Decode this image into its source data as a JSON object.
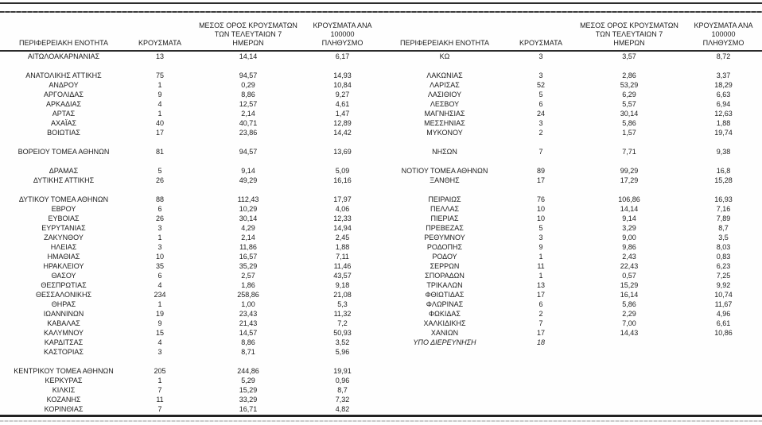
{
  "table": {
    "headers": {
      "region": "ΠΕΡΙΦΕΡΕΙΑΚΗ ΕΝΟΤΗΤΑ",
      "cases": "ΚΡΟΥΣΜΑΤΑ",
      "avg7": "ΜΕΣΟΣ ΟΡΟΣ ΚΡΟΥΣΜΑΤΩΝ\nΤΩΝ ΤΕΛΕΥΤΑΙΩΝ 7\nΗΜΕΡΩΝ",
      "per100k": "ΚΡΟΥΣΜΑΤΑ ΑΝΑ 100000\nΠΛΗΘΥΣΜΟ"
    },
    "left_rows": [
      {
        "region": "ΑΙΤΩΛΟΑΚΑΡΝΑΝΙΑΣ",
        "cases": "13",
        "avg7": "14,14",
        "per100k": "6,17"
      },
      {
        "blank": true
      },
      {
        "region": "ΑΝΑΤΟΛΙΚΗΣ ΑΤΤΙΚΗΣ",
        "cases": "75",
        "avg7": "94,57",
        "per100k": "14,93"
      },
      {
        "region": "ΑΝΔΡΟΥ",
        "cases": "1",
        "avg7": "0,29",
        "per100k": "10,84"
      },
      {
        "region": "ΑΡΓΟΛΙΔΑΣ",
        "cases": "9",
        "avg7": "8,86",
        "per100k": "9,27"
      },
      {
        "region": "ΑΡΚΑΔΙΑΣ",
        "cases": "4",
        "avg7": "12,57",
        "per100k": "4,61"
      },
      {
        "region": "ΑΡΤΑΣ",
        "cases": "1",
        "avg7": "2,14",
        "per100k": "1,47"
      },
      {
        "region": "ΑΧΑΪΑΣ",
        "cases": "40",
        "avg7": "40,71",
        "per100k": "12,89"
      },
      {
        "region": "ΒΟΙΩΤΙΑΣ",
        "cases": "17",
        "avg7": "23,86",
        "per100k": "14,42"
      },
      {
        "blank": true
      },
      {
        "region": "ΒΟΡΕΙΟΥ ΤΟΜΕΑ ΑΘΗΝΩΝ",
        "cases": "81",
        "avg7": "94,57",
        "per100k": "13,69"
      },
      {
        "blank": true
      },
      {
        "region": "ΔΡΑΜΑΣ",
        "cases": "5",
        "avg7": "9,14",
        "per100k": "5,09"
      },
      {
        "region": "ΔΥΤΙΚΗΣ ΑΤΤΙΚΗΣ",
        "cases": "26",
        "avg7": "49,29",
        "per100k": "16,16"
      },
      {
        "blank": true
      },
      {
        "region": "ΔΥΤΙΚΟΥ ΤΟΜΕΑ ΑΘΗΝΩΝ",
        "cases": "88",
        "avg7": "112,43",
        "per100k": "17,97"
      },
      {
        "region": "ΕΒΡΟΥ",
        "cases": "6",
        "avg7": "10,29",
        "per100k": "4,06"
      },
      {
        "region": "ΕΥΒΟΙΑΣ",
        "cases": "26",
        "avg7": "30,14",
        "per100k": "12,33"
      },
      {
        "region": "ΕΥΡΥΤΑΝΙΑΣ",
        "cases": "3",
        "avg7": "4,29",
        "per100k": "14,94"
      },
      {
        "region": "ΖΑΚΥΝΘΟΥ",
        "cases": "1",
        "avg7": "2,14",
        "per100k": "2,45"
      },
      {
        "region": "ΗΛΕΙΑΣ",
        "cases": "3",
        "avg7": "11,86",
        "per100k": "1,88"
      },
      {
        "region": "ΗΜΑΘΙΑΣ",
        "cases": "10",
        "avg7": "16,57",
        "per100k": "7,11"
      },
      {
        "region": "ΗΡΑΚΛΕΙΟΥ",
        "cases": "35",
        "avg7": "35,29",
        "per100k": "11,46"
      },
      {
        "region": "ΘΑΣΟΥ",
        "cases": "6",
        "avg7": "2,57",
        "per100k": "43,57"
      },
      {
        "region": "ΘΕΣΠΡΩΤΙΑΣ",
        "cases": "4",
        "avg7": "1,86",
        "per100k": "9,18"
      },
      {
        "region": "ΘΕΣΣΑΛΟΝΙΚΗΣ",
        "cases": "234",
        "avg7": "258,86",
        "per100k": "21,08"
      },
      {
        "region": "ΘΗΡΑΣ",
        "cases": "1",
        "avg7": "1,00",
        "per100k": "5,3"
      },
      {
        "region": "ΙΩΑΝΝΙΝΩΝ",
        "cases": "19",
        "avg7": "23,43",
        "per100k": "11,32"
      },
      {
        "region": "ΚΑΒΑΛΑΣ",
        "cases": "9",
        "avg7": "21,43",
        "per100k": "7,2"
      },
      {
        "region": "ΚΑΛΥΜΝΟΥ",
        "cases": "15",
        "avg7": "14,57",
        "per100k": "50,93"
      },
      {
        "region": "ΚΑΡΔΙΤΣΑΣ",
        "cases": "4",
        "avg7": "8,86",
        "per100k": "3,52"
      },
      {
        "region": "ΚΑΣΤΟΡΙΑΣ",
        "cases": "3",
        "avg7": "8,71",
        "per100k": "5,96"
      },
      {
        "blank": true
      },
      {
        "region": "ΚΕΝΤΡΙΚΟΥ ΤΟΜΕΑ ΑΘΗΝΩΝ",
        "cases": "205",
        "avg7": "244,86",
        "per100k": "19,91"
      },
      {
        "region": "ΚΕΡΚΥΡΑΣ",
        "cases": "1",
        "avg7": "5,29",
        "per100k": "0,96"
      },
      {
        "region": "ΚΙΛΚΙΣ",
        "cases": "7",
        "avg7": "15,29",
        "per100k": "8,7"
      },
      {
        "region": "ΚΟΖΑΝΗΣ",
        "cases": "11",
        "avg7": "33,29",
        "per100k": "7,32"
      },
      {
        "region": "ΚΟΡΙΝΘΙΑΣ",
        "cases": "7",
        "avg7": "16,71",
        "per100k": "4,82"
      }
    ],
    "right_rows": [
      {
        "region": "ΚΩ",
        "cases": "3",
        "avg7": "3,57",
        "per100k": "8,72"
      },
      {
        "blank": true
      },
      {
        "region": "ΛΑΚΩΝΙΑΣ",
        "cases": "3",
        "avg7": "2,86",
        "per100k": "3,37"
      },
      {
        "region": "ΛΑΡΙΣΑΣ",
        "cases": "52",
        "avg7": "53,29",
        "per100k": "18,29"
      },
      {
        "region": "ΛΑΣΙΘΙΟΥ",
        "cases": "5",
        "avg7": "6,29",
        "per100k": "6,63"
      },
      {
        "region": "ΛΕΣΒΟΥ",
        "cases": "6",
        "avg7": "5,57",
        "per100k": "6,94"
      },
      {
        "region": "ΜΑΓΝΗΣΙΑΣ",
        "cases": "24",
        "avg7": "30,14",
        "per100k": "12,63"
      },
      {
        "region": "ΜΕΣΣΗΝΙΑΣ",
        "cases": "3",
        "avg7": "5,86",
        "per100k": "1,88"
      },
      {
        "region": "ΜΥΚΟΝΟΥ",
        "cases": "2",
        "avg7": "1,57",
        "per100k": "19,74"
      },
      {
        "blank": true
      },
      {
        "region": "ΝΗΣΩΝ",
        "cases": "7",
        "avg7": "7,71",
        "per100k": "9,38"
      },
      {
        "blank": true
      },
      {
        "region": "ΝΟΤΙΟΥ ΤΟΜΕΑ ΑΘΗΝΩΝ",
        "cases": "89",
        "avg7": "99,29",
        "per100k": "16,8"
      },
      {
        "region": "ΞΑΝΘΗΣ",
        "cases": "17",
        "avg7": "17,29",
        "per100k": "15,28"
      },
      {
        "blank": true
      },
      {
        "region": "ΠΕΙΡΑΙΩΣ",
        "cases": "76",
        "avg7": "106,86",
        "per100k": "16,93"
      },
      {
        "region": "ΠΕΛΛΑΣ",
        "cases": "10",
        "avg7": "14,14",
        "per100k": "7,16"
      },
      {
        "region": "ΠΙΕΡΙΑΣ",
        "cases": "10",
        "avg7": "9,14",
        "per100k": "7,89"
      },
      {
        "region": "ΠΡΕΒΕΖΑΣ",
        "cases": "5",
        "avg7": "3,29",
        "per100k": "8,7"
      },
      {
        "region": "ΡΕΘΥΜΝΟΥ",
        "cases": "3",
        "avg7": "9,00",
        "per100k": "3,5"
      },
      {
        "region": "ΡΟΔΟΠΗΣ",
        "cases": "9",
        "avg7": "9,86",
        "per100k": "8,03"
      },
      {
        "region": "ΡΟΔΟΥ",
        "cases": "1",
        "avg7": "2,43",
        "per100k": "0,83"
      },
      {
        "region": "ΣΕΡΡΩΝ",
        "cases": "11",
        "avg7": "22,43",
        "per100k": "6,23"
      },
      {
        "region": "ΣΠΟΡΑΔΩΝ",
        "cases": "1",
        "avg7": "0,57",
        "per100k": "7,25"
      },
      {
        "region": "ΤΡΙΚΑΛΩΝ",
        "cases": "13",
        "avg7": "15,29",
        "per100k": "9,92"
      },
      {
        "region": "ΦΘΙΩΤΙΔΑΣ",
        "cases": "17",
        "avg7": "16,14",
        "per100k": "10,74"
      },
      {
        "region": "ΦΛΩΡΙΝΑΣ",
        "cases": "6",
        "avg7": "5,86",
        "per100k": "11,67"
      },
      {
        "region": "ΦΩΚΙΔΑΣ",
        "cases": "2",
        "avg7": "2,29",
        "per100k": "4,96"
      },
      {
        "region": "ΧΑΛΚΙΔΙΚΗΣ",
        "cases": "7",
        "avg7": "7,00",
        "per100k": "6,61"
      },
      {
        "region": "ΧΑΝΙΩΝ",
        "cases": "17",
        "avg7": "14,43",
        "per100k": "10,86"
      },
      {
        "region": "ΥΠΟ ΔΙΕΡΕΥΝΗΣΗ",
        "cases": "18",
        "avg7": "",
        "per100k": "",
        "italic": true
      },
      {
        "blank": true
      },
      {
        "blank": true
      },
      {
        "blank": true
      },
      {
        "blank": true
      },
      {
        "blank": true
      },
      {
        "blank": true
      },
      {
        "blank": true
      }
    ]
  }
}
